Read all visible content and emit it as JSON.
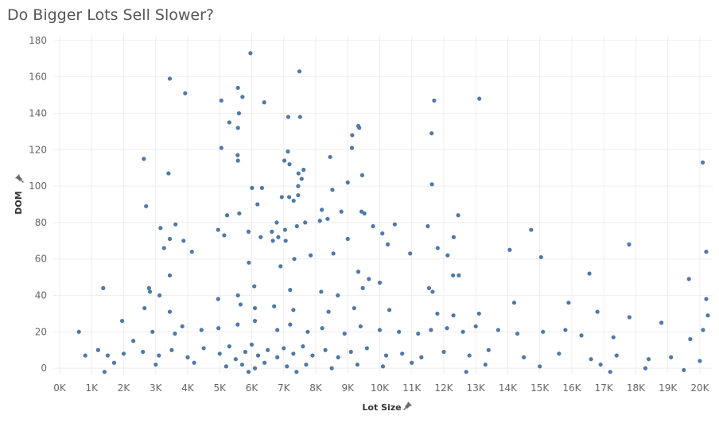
{
  "chart_data": {
    "type": "scatter",
    "title": "Do Bigger Lots Sell Slower?",
    "xlabel": "Lot Size",
    "ylabel": "DOM",
    "x_axis_pin_icon": "pin-icon",
    "y_axis_pin_icon": "pin-icon",
    "grid": true,
    "xlim": [
      -200,
      20400
    ],
    "ylim": [
      -3,
      183
    ],
    "x_ticks": [
      {
        "value": 0,
        "label": "0K"
      },
      {
        "value": 1000,
        "label": "1K"
      },
      {
        "value": 2000,
        "label": "2K"
      },
      {
        "value": 3000,
        "label": "3K"
      },
      {
        "value": 4000,
        "label": "4K"
      },
      {
        "value": 5000,
        "label": "5K"
      },
      {
        "value": 6000,
        "label": "6K"
      },
      {
        "value": 7000,
        "label": "7K"
      },
      {
        "value": 8000,
        "label": "8K"
      },
      {
        "value": 9000,
        "label": "9K"
      },
      {
        "value": 10000,
        "label": "10K"
      },
      {
        "value": 11000,
        "label": "11K"
      },
      {
        "value": 12000,
        "label": "12K"
      },
      {
        "value": 13000,
        "label": "13K"
      },
      {
        "value": 14000,
        "label": "14K"
      },
      {
        "value": 15000,
        "label": "15K"
      },
      {
        "value": 16000,
        "label": "16K"
      },
      {
        "value": 17000,
        "label": "17K"
      },
      {
        "value": 18000,
        "label": "18K"
      },
      {
        "value": 19000,
        "label": "19K"
      },
      {
        "value": 20000,
        "label": "20K"
      }
    ],
    "y_ticks": [
      {
        "value": 0,
        "label": "0"
      },
      {
        "value": 20,
        "label": "20"
      },
      {
        "value": 40,
        "label": "40"
      },
      {
        "value": 60,
        "label": "60"
      },
      {
        "value": 80,
        "label": "80"
      },
      {
        "value": 100,
        "label": "100"
      },
      {
        "value": 120,
        "label": "120"
      },
      {
        "value": 140,
        "label": "140"
      },
      {
        "value": 160,
        "label": "160"
      },
      {
        "value": 180,
        "label": "180"
      }
    ],
    "color": "#4e79a7",
    "points": [
      [
        5960,
        173
      ],
      [
        7490,
        163
      ],
      [
        3440,
        159
      ],
      [
        5570,
        154
      ],
      [
        3920,
        151
      ],
      [
        5710,
        149
      ],
      [
        5050,
        147
      ],
      [
        6390,
        146
      ],
      [
        11700,
        147
      ],
      [
        13110,
        148
      ],
      [
        5600,
        140
      ],
      [
        7140,
        138
      ],
      [
        7510,
        138
      ],
      [
        5300,
        135
      ],
      [
        5570,
        132
      ],
      [
        9330,
        133
      ],
      [
        9360,
        132
      ],
      [
        9140,
        128
      ],
      [
        11620,
        129
      ],
      [
        5050,
        121
      ],
      [
        7130,
        119
      ],
      [
        9130,
        121
      ],
      [
        2630,
        115
      ],
      [
        5560,
        117
      ],
      [
        5570,
        114
      ],
      [
        7020,
        114
      ],
      [
        7180,
        112
      ],
      [
        8450,
        116
      ],
      [
        20090,
        113
      ],
      [
        7460,
        107
      ],
      [
        7620,
        109
      ],
      [
        7560,
        104
      ],
      [
        3400,
        107
      ],
      [
        9450,
        106
      ],
      [
        6010,
        99
      ],
      [
        6320,
        99
      ],
      [
        7450,
        100
      ],
      [
        9000,
        102
      ],
      [
        11630,
        101
      ],
      [
        8520,
        98
      ],
      [
        2700,
        89
      ],
      [
        6940,
        94
      ],
      [
        7170,
        94
      ],
      [
        7310,
        92
      ],
      [
        7450,
        95
      ],
      [
        6180,
        90
      ],
      [
        5230,
        84
      ],
      [
        5610,
        85
      ],
      [
        8190,
        87
      ],
      [
        8800,
        86
      ],
      [
        9430,
        86
      ],
      [
        9520,
        85
      ],
      [
        12450,
        84
      ],
      [
        3620,
        79
      ],
      [
        6780,
        80
      ],
      [
        7670,
        80
      ],
      [
        8130,
        81
      ],
      [
        8370,
        82
      ],
      [
        9790,
        78
      ],
      [
        10470,
        79
      ],
      [
        11500,
        78
      ],
      [
        14730,
        76
      ],
      [
        3150,
        77
      ],
      [
        4950,
        76
      ],
      [
        5140,
        73
      ],
      [
        5900,
        75
      ],
      [
        6630,
        75
      ],
      [
        7040,
        76
      ],
      [
        7410,
        78
      ],
      [
        3870,
        70
      ],
      [
        3440,
        71
      ],
      [
        3260,
        66
      ],
      [
        4130,
        64
      ],
      [
        6280,
        72
      ],
      [
        6660,
        70
      ],
      [
        6830,
        72
      ],
      [
        7060,
        70
      ],
      [
        9000,
        71
      ],
      [
        10080,
        74
      ],
      [
        10250,
        68
      ],
      [
        12310,
        72
      ],
      [
        11810,
        66
      ],
      [
        10950,
        63
      ],
      [
        12120,
        62
      ],
      [
        14060,
        65
      ],
      [
        15040,
        61
      ],
      [
        17790,
        68
      ],
      [
        20200,
        64
      ],
      [
        3440,
        51
      ],
      [
        5910,
        58
      ],
      [
        6900,
        56
      ],
      [
        7330,
        60
      ],
      [
        7840,
        62
      ],
      [
        8550,
        63
      ],
      [
        9330,
        53
      ],
      [
        9660,
        49
      ],
      [
        10000,
        47
      ],
      [
        12290,
        51
      ],
      [
        12470,
        51
      ],
      [
        16550,
        52
      ],
      [
        19660,
        49
      ],
      [
        2790,
        44
      ],
      [
        2820,
        42
      ],
      [
        1360,
        44
      ],
      [
        3120,
        40
      ],
      [
        5570,
        40
      ],
      [
        6080,
        45
      ],
      [
        7200,
        43
      ],
      [
        8170,
        42
      ],
      [
        8690,
        40
      ],
      [
        9470,
        44
      ],
      [
        11540,
        44
      ],
      [
        11650,
        42
      ],
      [
        2650,
        33
      ],
      [
        3440,
        31
      ],
      [
        4950,
        38
      ],
      [
        5650,
        35
      ],
      [
        6100,
        33
      ],
      [
        6700,
        34
      ],
      [
        7300,
        32
      ],
      [
        8400,
        31
      ],
      [
        9200,
        33
      ],
      [
        10300,
        32
      ],
      [
        11800,
        30
      ],
      [
        12300,
        29
      ],
      [
        13100,
        30
      ],
      [
        14200,
        36
      ],
      [
        15900,
        36
      ],
      [
        16800,
        31
      ],
      [
        20200,
        38
      ],
      [
        2900,
        20
      ],
      [
        3600,
        19
      ],
      [
        3830,
        23
      ],
      [
        4430,
        21
      ],
      [
        4960,
        22
      ],
      [
        5560,
        24
      ],
      [
        6100,
        26
      ],
      [
        6800,
        21
      ],
      [
        7200,
        24
      ],
      [
        7750,
        20
      ],
      [
        8200,
        22
      ],
      [
        8900,
        19
      ],
      [
        9400,
        23
      ],
      [
        10000,
        21
      ],
      [
        10600,
        20
      ],
      [
        11200,
        19
      ],
      [
        11600,
        21
      ],
      [
        12100,
        22
      ],
      [
        12600,
        20
      ],
      [
        13000,
        23
      ],
      [
        13700,
        21
      ],
      [
        14300,
        19
      ],
      [
        15100,
        20
      ],
      [
        15800,
        21
      ],
      [
        16300,
        18
      ],
      [
        17300,
        17
      ],
      [
        17800,
        28
      ],
      [
        18800,
        25
      ],
      [
        19700,
        16
      ],
      [
        20100,
        21
      ],
      [
        20250,
        29
      ],
      [
        600,
        20
      ],
      [
        1950,
        26
      ],
      [
        1200,
        10
      ],
      [
        1500,
        7
      ],
      [
        2000,
        8
      ],
      [
        2300,
        15
      ],
      [
        2600,
        9
      ],
      [
        3100,
        7
      ],
      [
        3500,
        10
      ],
      [
        4000,
        6
      ],
      [
        4500,
        11
      ],
      [
        5000,
        8
      ],
      [
        5300,
        12
      ],
      [
        5500,
        5
      ],
      [
        5800,
        9
      ],
      [
        6000,
        13
      ],
      [
        6200,
        7
      ],
      [
        6500,
        10
      ],
      [
        6800,
        6
      ],
      [
        7000,
        11
      ],
      [
        7300,
        8
      ],
      [
        7600,
        12
      ],
      [
        7900,
        7
      ],
      [
        8300,
        10
      ],
      [
        8700,
        6
      ],
      [
        9100,
        9
      ],
      [
        9600,
        11
      ],
      [
        10200,
        7
      ],
      [
        10700,
        8
      ],
      [
        11300,
        6
      ],
      [
        12000,
        9
      ],
      [
        12800,
        7
      ],
      [
        13400,
        10
      ],
      [
        14500,
        6
      ],
      [
        15600,
        8
      ],
      [
        16600,
        5
      ],
      [
        17400,
        7
      ],
      [
        18400,
        5
      ],
      [
        19100,
        6
      ],
      [
        20000,
        4
      ],
      [
        800,
        7
      ],
      [
        1700,
        3
      ],
      [
        3000,
        2
      ],
      [
        4200,
        3
      ],
      [
        5200,
        1
      ],
      [
        5700,
        2
      ],
      [
        6100,
        0
      ],
      [
        6400,
        3
      ],
      [
        7100,
        1
      ],
      [
        7700,
        2
      ],
      [
        8500,
        0
      ],
      [
        9300,
        2
      ],
      [
        10100,
        1
      ],
      [
        11000,
        3
      ],
      [
        13300,
        2
      ],
      [
        15000,
        1
      ],
      [
        16900,
        2
      ],
      [
        18300,
        0
      ],
      [
        19500,
        -1
      ],
      [
        1400,
        -2
      ],
      [
        5900,
        -2
      ],
      [
        7400,
        -2
      ],
      [
        12700,
        -2
      ],
      [
        17200,
        -2
      ]
    ]
  }
}
